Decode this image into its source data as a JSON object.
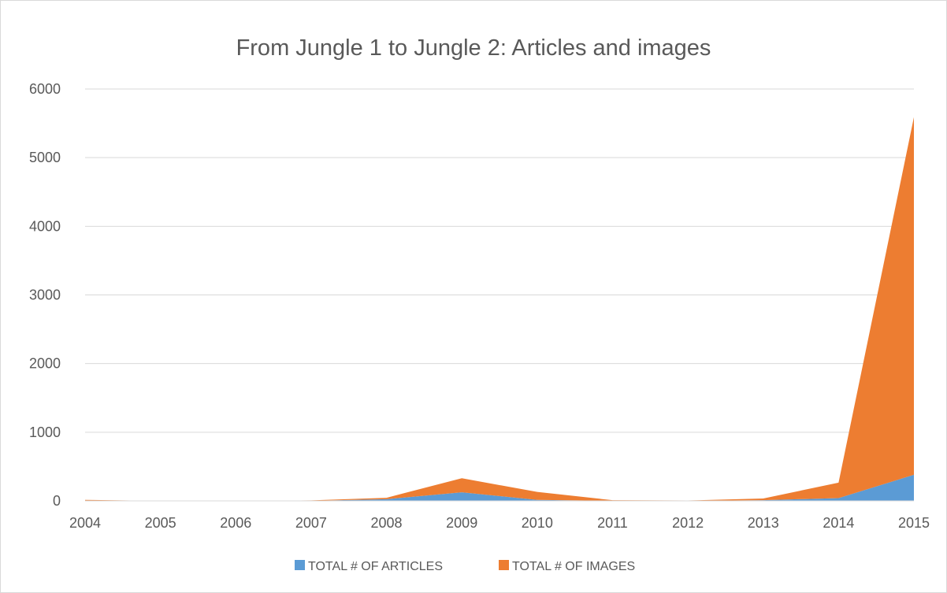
{
  "chart_data": {
    "type": "area",
    "stacked": true,
    "title": "From Jungle 1 to Jungle 2: Articles and images",
    "xlabel": "",
    "ylabel": "",
    "x": [
      "2004",
      "2005",
      "2006",
      "2007",
      "2008",
      "2009",
      "2010",
      "2011",
      "2012",
      "2013",
      "2014",
      "2015"
    ],
    "ylim": [
      0,
      6000
    ],
    "yticks": [
      0,
      1000,
      2000,
      3000,
      4000,
      5000,
      6000
    ],
    "grid": true,
    "legend": "bottom",
    "series": [
      {
        "name": "TOTAL # OF ARTICLES",
        "color": "#5b9bd5",
        "values": [
          5,
          0,
          0,
          2,
          25,
          125,
          15,
          0,
          0,
          10,
          40,
          380
        ]
      },
      {
        "name": "TOTAL # OF IMAGES",
        "color": "#ed7d31",
        "values": [
          10,
          0,
          0,
          5,
          20,
          205,
          115,
          10,
          5,
          25,
          225,
          5210
        ]
      }
    ]
  }
}
